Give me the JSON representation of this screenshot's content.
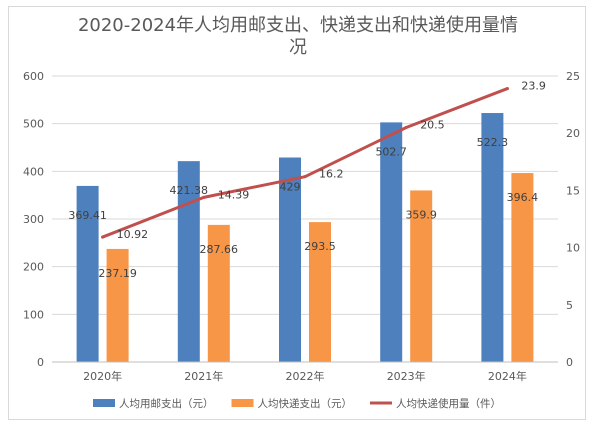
{
  "chart_data": {
    "type": "bar",
    "title_lines": [
      "2020-2024年人均用邮支出、快递支出和快递使用量情",
      "况"
    ],
    "categories": [
      "2020年",
      "2021年",
      "2022年",
      "2023年",
      "2024年"
    ],
    "series": [
      {
        "name": "人均用邮支出（元）",
        "type": "bar",
        "axis": "left",
        "color": "#4e80bd",
        "values": [
          369.41,
          421.38,
          429,
          502.7,
          522.3
        ],
        "labels": [
          "369.41",
          "421.38",
          "429",
          "502.7",
          "522.3"
        ]
      },
      {
        "name": "人均快递支出（元）",
        "type": "bar",
        "axis": "left",
        "color": "#f79646",
        "values": [
          237.19,
          287.66,
          293.5,
          359.9,
          396.4
        ],
        "labels": [
          "237.19",
          "287.66",
          "293.5",
          "359.9",
          "396.4"
        ]
      },
      {
        "name": "人均快递使用量（件）",
        "type": "line",
        "axis": "right",
        "color": "#c0504d",
        "values": [
          10.92,
          14.39,
          16.2,
          20.5,
          23.9
        ],
        "labels": [
          "10.92",
          "14.39",
          "16.2",
          "20.5",
          "23.9"
        ]
      }
    ],
    "y_left": {
      "min": 0,
      "max": 600,
      "ticks": [
        "0",
        "100",
        "200",
        "300",
        "400",
        "500",
        "600"
      ]
    },
    "y_right": {
      "min": 0,
      "max": 25,
      "ticks": [
        "0",
        "5",
        "10",
        "15",
        "20",
        "25"
      ]
    },
    "grid": "horizontal",
    "legend_position": "bottom"
  }
}
